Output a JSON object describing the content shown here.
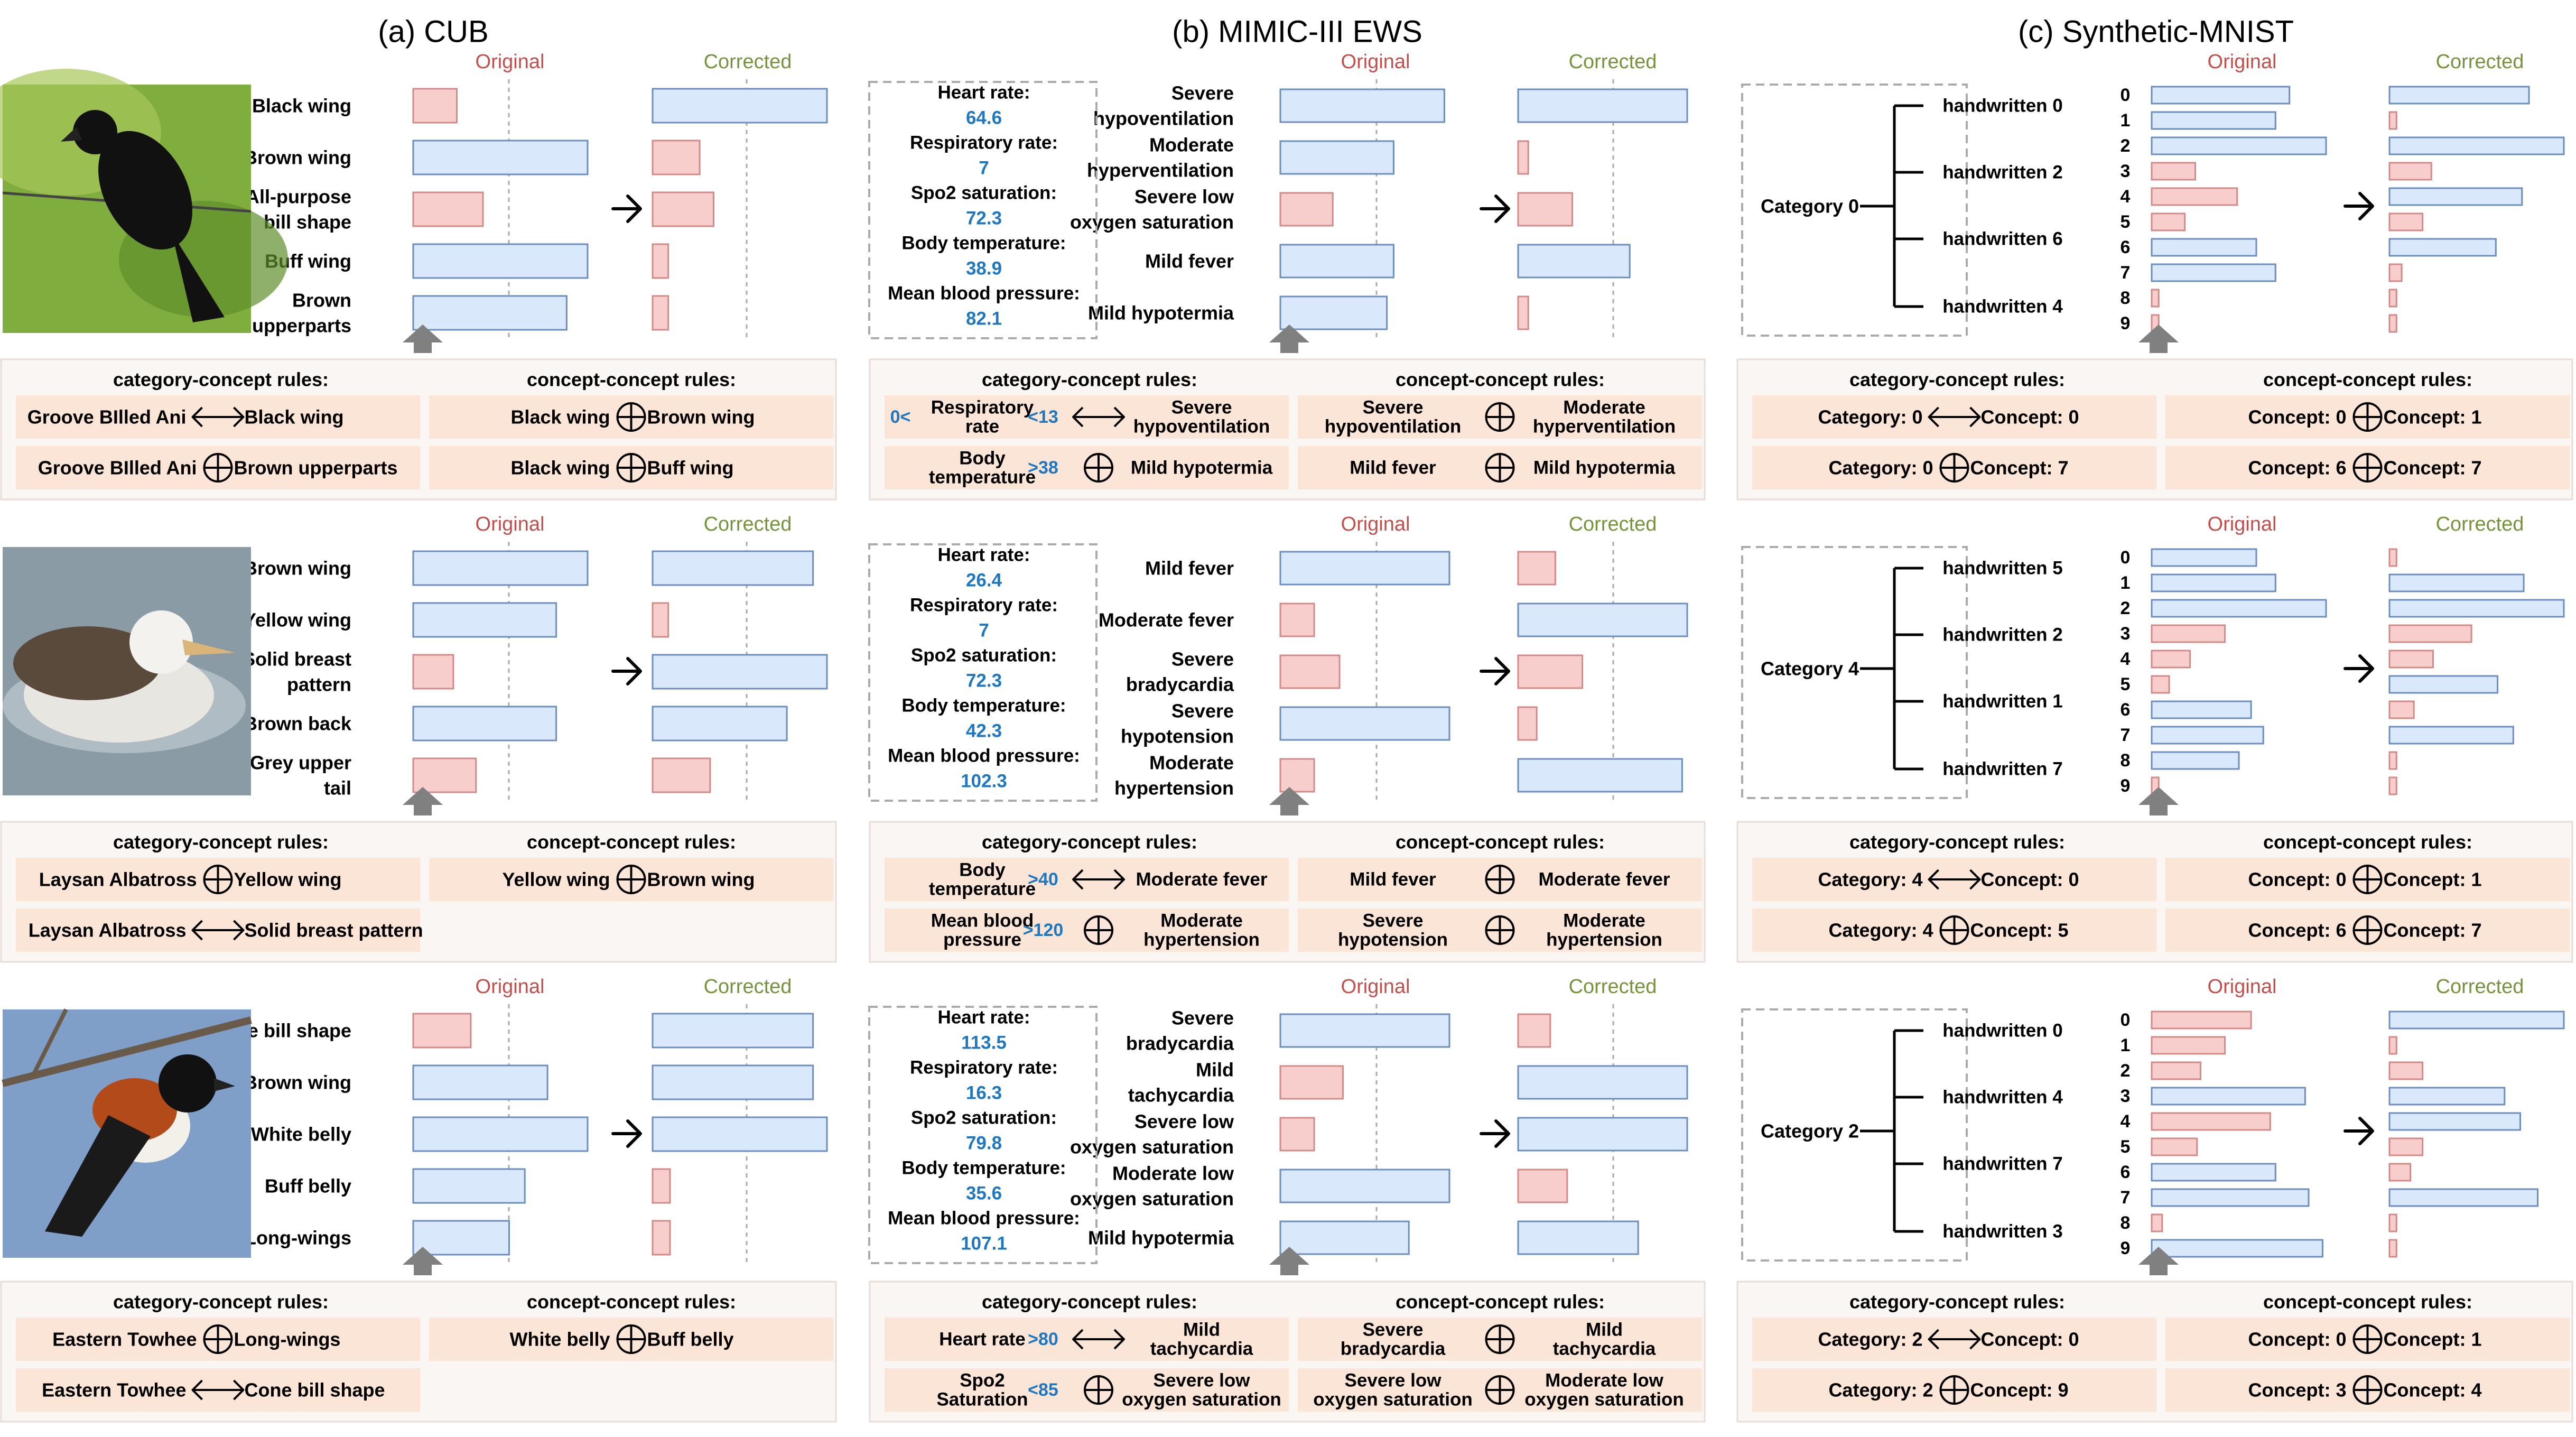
{
  "colors": {
    "orig_text": "#c0504d",
    "corr_text": "#76923c",
    "blue_fill": "#dae8fc",
    "blue_stroke": "#6c8ebf",
    "red_fill": "#f8cecc",
    "red_stroke": "#d08a88",
    "rule_fill": "#fbe5d6",
    "panel_fill": "#faf6f4",
    "vital_value": "#1f77c0",
    "arrow_gray": "#808080"
  },
  "headers": [
    "(a) CUB",
    "(b) MIMIC-III EWS",
    "(c) Synthetic-MNIST"
  ],
  "labels": {
    "original": "Original",
    "corrected": "Corrected",
    "cat_rules": "category-concept rules:",
    "con_rules": "concept-concept rules:"
  },
  "panels": [
    [
      {
        "image": "bird-photo-groove-billed-ani",
        "concepts": [
          [
            "Black wing"
          ],
          [
            "Brown wing"
          ],
          [
            "All-purpose",
            "bill shape"
          ],
          [
            "Buff wing"
          ],
          [
            "Brown",
            "upperparts"
          ]
        ],
        "orig": [
          {
            "v": 0.25,
            "c": "r"
          },
          {
            "v": 1.0,
            "c": "b"
          },
          {
            "v": 0.4,
            "c": "r"
          },
          {
            "v": 1.0,
            "c": "b"
          },
          {
            "v": 0.88,
            "c": "b"
          }
        ],
        "corr": [
          {
            "v": 1.0,
            "c": "b"
          },
          {
            "v": 0.27,
            "c": "r"
          },
          {
            "v": 0.35,
            "c": "r"
          },
          {
            "v": 0.09,
            "c": "r"
          },
          {
            "v": 0.09,
            "c": "r"
          }
        ],
        "cat_rules": [
          {
            "a": "Groove BIlled Ani",
            "op": "iff",
            "b": "Black wing"
          },
          {
            "a": "Groove BIlled Ani",
            "op": "xor",
            "b": "Brown upperparts"
          }
        ],
        "con_rules": [
          {
            "a": "Black wing",
            "op": "xor",
            "b": "Brown wing"
          },
          {
            "a": "Black wing",
            "op": "xor",
            "b": "Buff wing"
          }
        ]
      },
      {
        "image": "bird-photo-laysan-albatross",
        "concepts": [
          [
            "Brown wing"
          ],
          [
            "Yellow wing"
          ],
          [
            "Solid breast",
            "pattern"
          ],
          [
            "Brown back"
          ],
          [
            "Grey upper",
            "tail"
          ]
        ],
        "orig": [
          {
            "v": 1.0,
            "c": "b"
          },
          {
            "v": 0.82,
            "c": "b"
          },
          {
            "v": 0.23,
            "c": "r"
          },
          {
            "v": 0.82,
            "c": "b"
          },
          {
            "v": 0.36,
            "c": "r"
          }
        ],
        "corr": [
          {
            "v": 0.92,
            "c": "b"
          },
          {
            "v": 0.09,
            "c": "r"
          },
          {
            "v": 1.0,
            "c": "b"
          },
          {
            "v": 0.77,
            "c": "b"
          },
          {
            "v": 0.33,
            "c": "r"
          }
        ],
        "cat_rules": [
          {
            "a": "Laysan Albatross",
            "op": "xor",
            "b": "Yellow wing"
          },
          {
            "a": "Laysan Albatross",
            "op": "iff",
            "b": "Solid breast pattern"
          }
        ],
        "con_rules": [
          {
            "a": "Yellow wing",
            "op": "xor",
            "b": "Brown wing"
          }
        ]
      },
      {
        "image": "bird-photo-eastern-towhee",
        "concepts": [
          [
            "Cone bill shape"
          ],
          [
            "Brown wing"
          ],
          [
            "White belly"
          ],
          [
            "Buff belly"
          ],
          [
            "Long-wings"
          ]
        ],
        "orig": [
          {
            "v": 0.33,
            "c": "r"
          },
          {
            "v": 0.77,
            "c": "b"
          },
          {
            "v": 1.0,
            "c": "b"
          },
          {
            "v": 0.64,
            "c": "b"
          },
          {
            "v": 0.55,
            "c": "b"
          }
        ],
        "corr": [
          {
            "v": 0.92,
            "c": "b"
          },
          {
            "v": 0.92,
            "c": "b"
          },
          {
            "v": 1.0,
            "c": "b"
          },
          {
            "v": 0.1,
            "c": "r"
          },
          {
            "v": 0.1,
            "c": "r"
          }
        ],
        "cat_rules": [
          {
            "a": "Eastern Towhee",
            "op": "xor",
            "b": "Long-wings"
          },
          {
            "a": "Eastern Towhee",
            "op": "iff",
            "b": "Cone bill shape"
          }
        ],
        "con_rules": [
          {
            "a": "White belly",
            "op": "xor",
            "b": "Buff belly"
          }
        ]
      }
    ],
    [
      {
        "vitals": [
          [
            "Heart rate:",
            "64.6"
          ],
          [
            "Respiratory rate:",
            "7"
          ],
          [
            "Spo2 saturation:",
            "72.3"
          ],
          [
            "Body temperature:",
            "38.9"
          ],
          [
            "Mean blood pressure:",
            "82.1"
          ]
        ],
        "concepts": [
          [
            "Severe",
            "hypoventilation"
          ],
          [
            "Moderate",
            "hyperventilation"
          ],
          [
            "Severe low",
            "oxygen saturation"
          ],
          [
            "Mild fever"
          ],
          [
            "Mild hypotermia"
          ]
        ],
        "orig": [
          {
            "v": 0.97,
            "c": "b"
          },
          {
            "v": 0.67,
            "c": "b"
          },
          {
            "v": 0.31,
            "c": "r"
          },
          {
            "v": 0.67,
            "c": "b"
          },
          {
            "v": 0.63,
            "c": "b"
          }
        ],
        "corr": [
          {
            "v": 1.0,
            "c": "b"
          },
          {
            "v": 0.06,
            "c": "r"
          },
          {
            "v": 0.32,
            "c": "r"
          },
          {
            "v": 0.66,
            "c": "b"
          },
          {
            "v": 0.06,
            "c": "r"
          }
        ],
        "cat_rules": [
          {
            "pre": "0<",
            "a": [
              "Respiratory",
              "rate"
            ],
            "post": "<13",
            "op": "iff",
            "b": [
              "Severe",
              "hypoventilation"
            ]
          },
          {
            "pre": "",
            "a": [
              "Body",
              "temperature"
            ],
            "post": ">38",
            "op": "xor",
            "b": [
              "Mild hypotermia"
            ]
          }
        ],
        "con_rules": [
          {
            "a": [
              "Severe",
              "hypoventilation"
            ],
            "op": "xor",
            "b": [
              "Moderate",
              "hyperventilation"
            ]
          },
          {
            "a": [
              "Mild fever"
            ],
            "op": "xor",
            "b": [
              "Mild hypotermia"
            ]
          }
        ]
      },
      {
        "vitals": [
          [
            "Heart rate:",
            "26.4"
          ],
          [
            "Respiratory rate:",
            "7"
          ],
          [
            "Spo2 saturation:",
            "72.3"
          ],
          [
            "Body temperature:",
            "42.3"
          ],
          [
            "Mean blood pressure:",
            "102.3"
          ]
        ],
        "concepts": [
          [
            "Mild fever"
          ],
          [
            "Moderate fever"
          ],
          [
            "Severe",
            "bradycardia"
          ],
          [
            "Severe",
            "hypotension"
          ],
          [
            "Moderate",
            "hypertension"
          ]
        ],
        "orig": [
          {
            "v": 1.0,
            "c": "b"
          },
          {
            "v": 0.2,
            "c": "r"
          },
          {
            "v": 0.35,
            "c": "r"
          },
          {
            "v": 1.0,
            "c": "b"
          },
          {
            "v": 0.2,
            "c": "r"
          }
        ],
        "corr": [
          {
            "v": 0.22,
            "c": "r"
          },
          {
            "v": 1.0,
            "c": "b"
          },
          {
            "v": 0.38,
            "c": "r"
          },
          {
            "v": 0.11,
            "c": "r"
          },
          {
            "v": 0.97,
            "c": "b"
          }
        ],
        "cat_rules": [
          {
            "pre": "",
            "a": [
              "Body",
              "temperature"
            ],
            "post": ">40",
            "op": "iff",
            "b": [
              "Moderate fever"
            ]
          },
          {
            "pre": "",
            "a": [
              "Mean blood",
              "pressure"
            ],
            "post": ">120",
            "op": "xor",
            "b": [
              "Moderate",
              "hypertension"
            ]
          }
        ],
        "con_rules": [
          {
            "a": [
              "Mild fever"
            ],
            "op": "xor",
            "b": [
              "Moderate fever"
            ]
          },
          {
            "a": [
              "Severe",
              "hypotension"
            ],
            "op": "xor",
            "b": [
              "Moderate",
              "hypertension"
            ]
          }
        ]
      },
      {
        "vitals": [
          [
            "Heart rate:",
            "113.5"
          ],
          [
            "Respiratory rate:",
            "16.3"
          ],
          [
            "Spo2 saturation:",
            "79.8"
          ],
          [
            "Body temperature:",
            "35.6"
          ],
          [
            "Mean blood pressure:",
            "107.1"
          ]
        ],
        "concepts": [
          [
            "Severe",
            "bradycardia"
          ],
          [
            "Mild",
            "tachycardia"
          ],
          [
            "Severe low",
            "oxygen saturation"
          ],
          [
            "Moderate low",
            "oxygen saturation"
          ],
          [
            "Mild hypotermia"
          ]
        ],
        "orig": [
          {
            "v": 1.0,
            "c": "b"
          },
          {
            "v": 0.37,
            "c": "r"
          },
          {
            "v": 0.2,
            "c": "r"
          },
          {
            "v": 1.0,
            "c": "b"
          },
          {
            "v": 0.76,
            "c": "b"
          }
        ],
        "corr": [
          {
            "v": 0.19,
            "c": "r"
          },
          {
            "v": 1.0,
            "c": "b"
          },
          {
            "v": 1.0,
            "c": "b"
          },
          {
            "v": 0.29,
            "c": "r"
          },
          {
            "v": 0.71,
            "c": "b"
          }
        ],
        "cat_rules": [
          {
            "pre": "",
            "a": [
              "Heart rate"
            ],
            "post": ">80",
            "op": "iff",
            "b": [
              "Mild",
              "tachycardia"
            ]
          },
          {
            "pre": "",
            "a": [
              "Spo2",
              "Saturation"
            ],
            "post": "<85",
            "op": "xor",
            "b": [
              "Severe low",
              "oxygen saturation"
            ]
          }
        ],
        "con_rules": [
          {
            "a": [
              "Severe",
              "bradycardia"
            ],
            "op": "xor",
            "b": [
              "Mild",
              "tachycardia"
            ]
          },
          {
            "a": [
              "Severe low",
              "oxygen saturation"
            ],
            "op": "xor",
            "b": [
              "Moderate low",
              "oxygen saturation"
            ]
          }
        ]
      }
    ],
    [
      {
        "category": "Category 0",
        "hw": [
          "handwritten 0",
          "handwritten 2",
          "handwritten 6",
          "handwritten 4"
        ],
        "orig": [
          {
            "v": 0.79,
            "c": "b"
          },
          {
            "v": 0.71,
            "c": "b"
          },
          {
            "v": 1.0,
            "c": "b"
          },
          {
            "v": 0.25,
            "c": "r"
          },
          {
            "v": 0.49,
            "c": "r"
          },
          {
            "v": 0.19,
            "c": "r"
          },
          {
            "v": 0.6,
            "c": "b"
          },
          {
            "v": 0.71,
            "c": "b"
          },
          {
            "v": 0.04,
            "c": "r"
          },
          {
            "v": 0.04,
            "c": "r"
          }
        ],
        "corr": [
          {
            "v": 0.8,
            "c": "b"
          },
          {
            "v": 0.04,
            "c": "r"
          },
          {
            "v": 1.0,
            "c": "b"
          },
          {
            "v": 0.24,
            "c": "r"
          },
          {
            "v": 0.76,
            "c": "b"
          },
          {
            "v": 0.19,
            "c": "r"
          },
          {
            "v": 0.61,
            "c": "b"
          },
          {
            "v": 0.07,
            "c": "r"
          },
          {
            "v": 0.04,
            "c": "r"
          },
          {
            "v": 0.04,
            "c": "r"
          }
        ],
        "cat_rules": [
          {
            "a": "Category: 0",
            "op": "iff",
            "b": "Concept: 0"
          },
          {
            "a": "Category: 0",
            "op": "xor",
            "b": "Concept: 7"
          }
        ],
        "con_rules": [
          {
            "a": "Concept: 0",
            "op": "xor",
            "b": "Concept: 1"
          },
          {
            "a": "Concept: 6",
            "op": "xor",
            "b": "Concept: 7"
          }
        ]
      },
      {
        "category": "Category 4",
        "hw": [
          "handwritten 5",
          "handwritten 2",
          "handwritten 1",
          "handwritten 7"
        ],
        "orig": [
          {
            "v": 0.6,
            "c": "b"
          },
          {
            "v": 0.71,
            "c": "b"
          },
          {
            "v": 1.0,
            "c": "b"
          },
          {
            "v": 0.42,
            "c": "r"
          },
          {
            "v": 0.22,
            "c": "r"
          },
          {
            "v": 0.1,
            "c": "r"
          },
          {
            "v": 0.57,
            "c": "b"
          },
          {
            "v": 0.64,
            "c": "b"
          },
          {
            "v": 0.5,
            "c": "b"
          },
          {
            "v": 0.04,
            "c": "r"
          }
        ],
        "corr": [
          {
            "v": 0.04,
            "c": "r"
          },
          {
            "v": 0.77,
            "c": "b"
          },
          {
            "v": 1.0,
            "c": "b"
          },
          {
            "v": 0.47,
            "c": "r"
          },
          {
            "v": 0.25,
            "c": "r"
          },
          {
            "v": 0.62,
            "c": "b"
          },
          {
            "v": 0.14,
            "c": "r"
          },
          {
            "v": 0.71,
            "c": "b"
          },
          {
            "v": 0.04,
            "c": "r"
          },
          {
            "v": 0.04,
            "c": "r"
          }
        ],
        "cat_rules": [
          {
            "a": "Category: 4",
            "op": "iff",
            "b": "Concept: 0"
          },
          {
            "a": "Category: 4",
            "op": "xor",
            "b": "Concept: 5"
          }
        ],
        "con_rules": [
          {
            "a": "Concept: 0",
            "op": "xor",
            "b": "Concept: 1"
          },
          {
            "a": "Concept: 6",
            "op": "xor",
            "b": "Concept: 7"
          }
        ]
      },
      {
        "category": "Category 2",
        "hw": [
          "handwritten 0",
          "handwritten 4",
          "handwritten 7",
          "handwritten 3"
        ],
        "orig": [
          {
            "v": 0.57,
            "c": "r"
          },
          {
            "v": 0.42,
            "c": "r"
          },
          {
            "v": 0.28,
            "c": "r"
          },
          {
            "v": 0.88,
            "c": "b"
          },
          {
            "v": 0.68,
            "c": "r"
          },
          {
            "v": 0.26,
            "c": "r"
          },
          {
            "v": 0.71,
            "c": "b"
          },
          {
            "v": 0.9,
            "c": "b"
          },
          {
            "v": 0.06,
            "c": "r"
          },
          {
            "v": 0.98,
            "c": "b"
          }
        ],
        "corr": [
          {
            "v": 1.0,
            "c": "b"
          },
          {
            "v": 0.04,
            "c": "r"
          },
          {
            "v": 0.19,
            "c": "r"
          },
          {
            "v": 0.66,
            "c": "b"
          },
          {
            "v": 0.75,
            "c": "b"
          },
          {
            "v": 0.19,
            "c": "r"
          },
          {
            "v": 0.12,
            "c": "r"
          },
          {
            "v": 0.85,
            "c": "b"
          },
          {
            "v": 0.04,
            "c": "r"
          },
          {
            "v": 0.04,
            "c": "r"
          }
        ],
        "cat_rules": [
          {
            "a": "Category: 2",
            "op": "iff",
            "b": "Concept: 0"
          },
          {
            "a": "Category: 2",
            "op": "xor",
            "b": "Concept: 9"
          }
        ],
        "con_rules": [
          {
            "a": "Concept: 0",
            "op": "xor",
            "b": "Concept: 1"
          },
          {
            "a": "Concept: 3",
            "op": "xor",
            "b": "Concept: 4"
          }
        ]
      }
    ]
  ],
  "digits": [
    "0",
    "1",
    "2",
    "3",
    "4",
    "5",
    "6",
    "7",
    "8",
    "9"
  ]
}
